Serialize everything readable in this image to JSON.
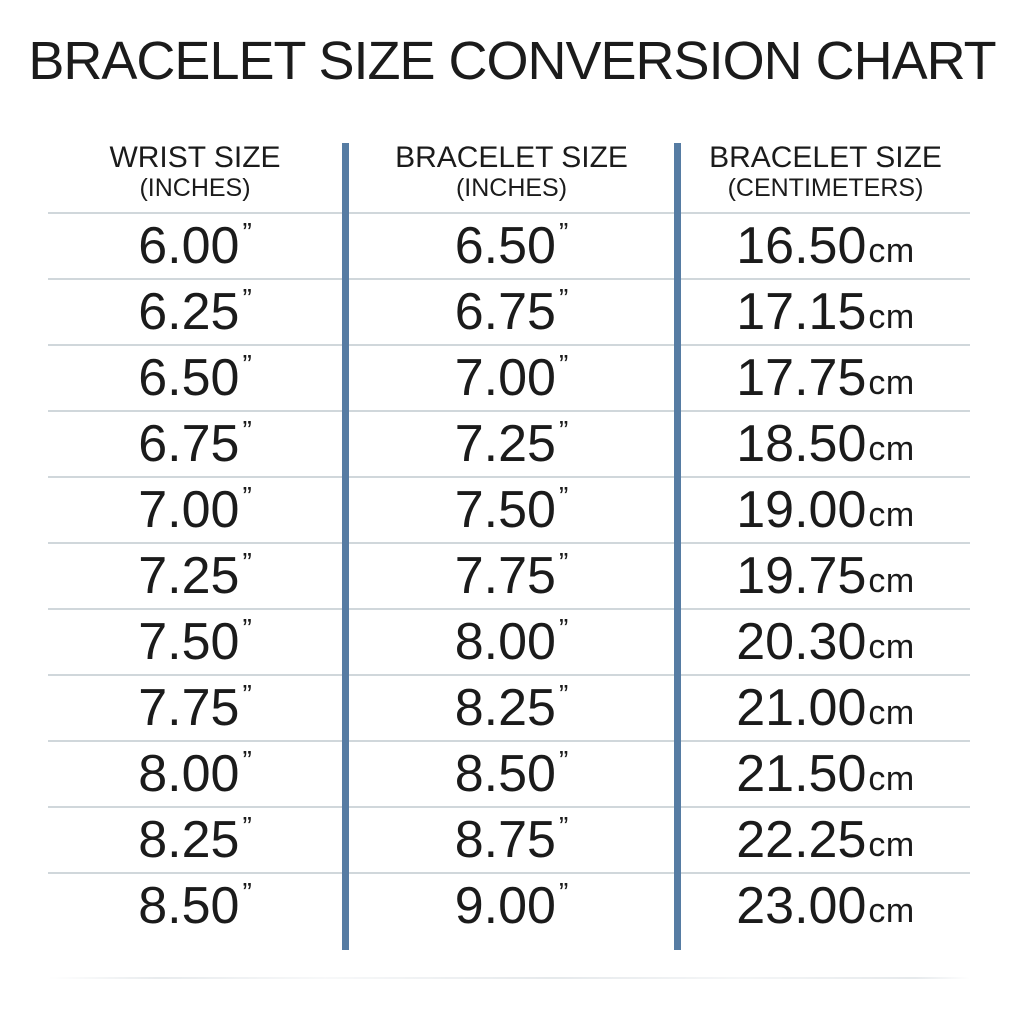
{
  "chart_data": {
    "type": "table",
    "title": "BRACELET SIZE CONVERSION CHART",
    "columns": [
      {
        "label": "WRIST SIZE",
        "sublabel": "(INCHES)"
      },
      {
        "label": "BRACELET SIZE",
        "sublabel": "(INCHES)"
      },
      {
        "label": "BRACELET SIZE",
        "sublabel": "(CENTIMETERS)"
      }
    ],
    "units": {
      "inch_mark": "”",
      "cm_suffix": "cm"
    },
    "rows": [
      [
        "6.00",
        "6.50",
        "16.50"
      ],
      [
        "6.25",
        "6.75",
        "17.15"
      ],
      [
        "6.50",
        "7.00",
        "17.75"
      ],
      [
        "6.75",
        "7.25",
        "18.50"
      ],
      [
        "7.00",
        "7.50",
        "19.00"
      ],
      [
        "7.25",
        "7.75",
        "19.75"
      ],
      [
        "7.50",
        "8.00",
        "20.30"
      ],
      [
        "7.75",
        "8.25",
        "21.00"
      ],
      [
        "8.00",
        "8.50",
        "21.50"
      ],
      [
        "8.25",
        "8.75",
        "22.25"
      ],
      [
        "8.50",
        "9.00",
        "23.00"
      ]
    ]
  },
  "colors": {
    "divider_blue": "#567ca3",
    "row_line": "#d0d7db",
    "text": "#1b1b1b"
  }
}
